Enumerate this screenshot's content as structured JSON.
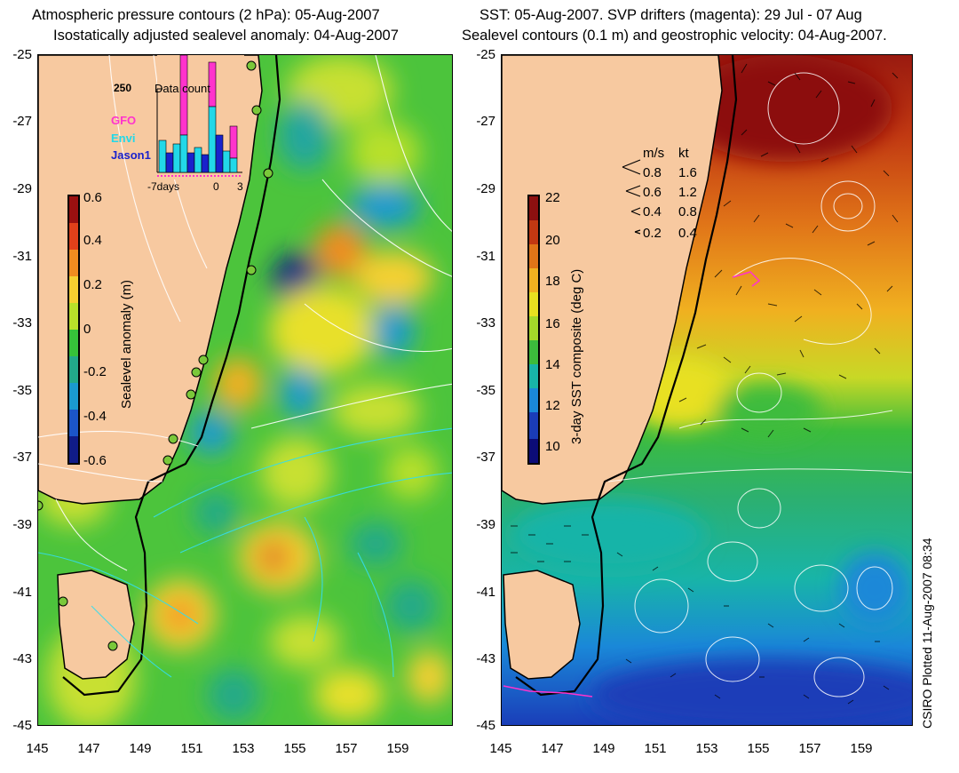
{
  "left_panel": {
    "title_line1": "Atmospheric pressure contours (2 hPa): 05-Aug-2007",
    "title_line2": "Isostatically adjusted sealevel anomaly: 04-Aug-2007",
    "colorbar": {
      "label": "Sealevel anomaly (m)",
      "ticks": [
        "0.6",
        "0.4",
        "0.2",
        "0",
        "-0.2",
        "-0.4",
        "-0.6"
      ],
      "colors": [
        "#9a1010",
        "#e0401a",
        "#f08c20",
        "#f5d030",
        "#b8e02a",
        "#36c23a",
        "#22a98a",
        "#1a9ad0",
        "#1b55c8",
        "#101c88"
      ]
    },
    "histogram": {
      "title": "Data count",
      "max_label": "250",
      "x_left": "-7days",
      "x_mid": "0",
      "x_right": "3",
      "legend": [
        {
          "name": "GFO",
          "color": "#ff33cc"
        },
        {
          "name": "Envi",
          "color": "#22d8e8"
        },
        {
          "name": "Jason1",
          "color": "#1a22cc"
        }
      ]
    }
  },
  "right_panel": {
    "title_line1": "SST: 05-Aug-2007. SVP drifters (magenta): 29 Jul - 07 Aug",
    "title_line2": "Sealevel contours (0.1 m) and geostrophic velocity: 04-Aug-2007.",
    "colorbar": {
      "label": "3-day SST composite (deg C)",
      "ticks": [
        "22",
        "20",
        "18",
        "16",
        "14",
        "12",
        "10"
      ],
      "colors": [
        "#8c1010",
        "#c23812",
        "#e07418",
        "#f0b020",
        "#e8e020",
        "#a4d82a",
        "#3cbc3c",
        "#18b4a8",
        "#1a88d8",
        "#1a3cb8",
        "#0c0c78"
      ]
    },
    "velocity_legend": {
      "header_ms": "m/s",
      "header_kt": "kt",
      "rows": [
        {
          "ms": "0.8",
          "kt": "1.6"
        },
        {
          "ms": "0.6",
          "kt": "1.2"
        },
        {
          "ms": "0.4",
          "kt": "0.8"
        },
        {
          "ms": "0.2",
          "kt": "0.4"
        }
      ]
    }
  },
  "axes": {
    "lat_ticks": [
      "-25",
      "-27",
      "-29",
      "-31",
      "-33",
      "-35",
      "-37",
      "-39",
      "-41",
      "-43",
      "-45"
    ],
    "lon_ticks": [
      "145",
      "147",
      "149",
      "151",
      "153",
      "155",
      "157",
      "159"
    ]
  },
  "credit": "CSIRO Plotted 11-Aug-2007 08:34",
  "colors": {
    "land": "#f7c9a0",
    "ocean_base_left": "#4cc43c",
    "coastline": "#000000",
    "contour_white": "#ffffff",
    "contour_cyan": "#33ddee"
  }
}
